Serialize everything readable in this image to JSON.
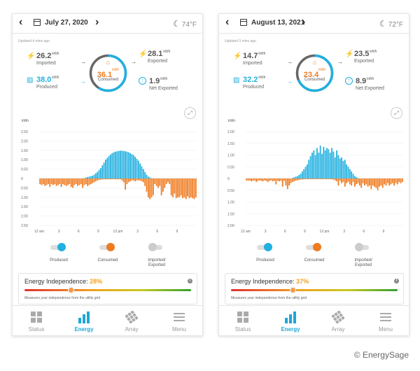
{
  "colors": {
    "produced": "#21b0e0",
    "consumed": "#ef7b20",
    "exported_toggle": "#cccccc",
    "active_tab": "#1ea7d6"
  },
  "panels": [
    {
      "date": "July 27, 2020",
      "temp": "74°F",
      "updated": "Updated 4 mins ago",
      "imported": {
        "value": "26.2",
        "unit": "kWh",
        "label": "Imported"
      },
      "produced": {
        "value": "38.0",
        "unit": "kWh",
        "label": "Produced"
      },
      "consumed": {
        "value": "36.1",
        "unit": "kWh",
        "label": "Consumed"
      },
      "exported": {
        "value": "28.1",
        "unit": "kWh",
        "label": "Exported"
      },
      "net_exported": {
        "value": "1.9",
        "unit": "kWh",
        "label": "Net Exported"
      },
      "independence": {
        "label": "Energy Independence:",
        "value": "28%",
        "percent": 28,
        "desc": "Measures your independence from the utility grid"
      }
    },
    {
      "date": "August 13, 2021",
      "temp": "72°F",
      "updated": "Updated 3 mins ago",
      "imported": {
        "value": "14.7",
        "unit": "kWh",
        "label": "Imported"
      },
      "produced": {
        "value": "32.2",
        "unit": "kWh",
        "label": "Produced"
      },
      "consumed": {
        "value": "23.4",
        "unit": "kWh",
        "label": "Consumed"
      },
      "exported": {
        "value": "23.5",
        "unit": "kWh",
        "label": "Exported"
      },
      "net_exported": {
        "value": "8.9",
        "unit": "kWh",
        "label": "Net Exported"
      },
      "independence": {
        "label": "Energy Independence:",
        "value": "37%",
        "percent": 37,
        "desc": "Measures your independence from the utility grid"
      }
    }
  ],
  "chart_data": [
    {
      "type": "bar",
      "title": "",
      "ylabel": "kWh",
      "yticks": [
        "2.50",
        "2.00",
        "1.50",
        "1.00",
        "0.50",
        "0",
        "0.50",
        "1.00",
        "1.50",
        "2.00",
        "2.50"
      ],
      "ylim": [
        -2.5,
        2.5
      ],
      "xticks": [
        "12 am",
        "3",
        "6",
        "9",
        "12 pm",
        "3",
        "6",
        "9"
      ],
      "x_range": [
        0,
        24
      ],
      "bins_per_hour": 4,
      "series": [
        {
          "name": "Produced",
          "values": [
            0,
            0,
            0,
            0,
            0,
            0,
            0,
            0,
            0,
            0,
            0,
            0,
            0,
            0,
            0,
            0,
            0,
            0,
            0,
            0,
            0,
            0,
            0,
            0,
            0,
            0,
            0,
            0.02,
            0.05,
            0.08,
            0.1,
            0.12,
            0.15,
            0.2,
            0.28,
            0.35,
            0.45,
            0.55,
            0.7,
            0.85,
            1.0,
            1.1,
            1.2,
            1.28,
            1.35,
            1.4,
            1.43,
            1.45,
            1.47,
            1.48,
            1.48,
            1.47,
            1.45,
            1.43,
            1.4,
            1.35,
            1.3,
            1.25,
            1.15,
            1.05,
            0.95,
            0.8,
            0.65,
            0.5,
            0.35,
            0.2,
            0.1,
            0.05,
            0.02,
            0,
            0,
            0,
            0,
            0,
            0,
            0,
            0,
            0,
            0,
            0,
            0,
            0,
            0,
            0,
            0,
            0,
            0,
            0,
            0,
            0,
            0,
            0,
            0,
            0,
            0,
            0
          ]
        },
        {
          "name": "Consumed",
          "values": [
            -0.3,
            -0.35,
            -0.3,
            -0.4,
            -0.35,
            -0.3,
            -0.45,
            -0.3,
            -0.35,
            -0.3,
            -0.4,
            -0.35,
            -0.3,
            -0.45,
            -0.3,
            -0.35,
            -0.4,
            -0.35,
            -0.3,
            -0.45,
            -0.5,
            -0.35,
            -0.3,
            -0.4,
            -0.35,
            -0.3,
            -0.5,
            -0.35,
            -0.3,
            -0.4,
            -0.35,
            -0.3,
            -0.25,
            -0.2,
            -0.15,
            -0.1,
            -0.08,
            -0.06,
            -0.05,
            -0.05,
            -0.04,
            -0.04,
            -0.04,
            -0.04,
            -0.04,
            -0.04,
            -0.04,
            -0.05,
            -0.04,
            -0.04,
            -0.1,
            -0.2,
            -0.6,
            -0.3,
            -0.2,
            -0.15,
            -0.1,
            -0.1,
            -0.15,
            -0.1,
            -0.1,
            -0.1,
            -0.15,
            -0.2,
            -0.4,
            -0.7,
            -1.0,
            -1.1,
            -1.0,
            -0.9,
            -0.3,
            -0.4,
            -0.5,
            -0.4,
            -0.9,
            -0.7,
            -0.5,
            -0.3,
            -0.2,
            -0.3,
            -0.9,
            -1.0,
            -0.8,
            -1.05,
            -1.0,
            -1.0,
            -0.9,
            -1.05,
            -1.0,
            -1.1,
            -0.95,
            -1.05,
            -1.0,
            -1.05,
            -1.1,
            -1.0
          ]
        }
      ]
    },
    {
      "type": "bar",
      "title": "",
      "ylabel": "kWh",
      "yticks": [
        "2.00",
        "1.50",
        "1.00",
        "0.50",
        "0",
        "0.50",
        "1.00",
        "1.50",
        "2.00"
      ],
      "ylim": [
        -2.0,
        2.0
      ],
      "xticks": [
        "12 am",
        "3",
        "6",
        "9",
        "12 pm",
        "3",
        "6",
        "9"
      ],
      "x_range": [
        0,
        24
      ],
      "bins_per_hour": 4,
      "series": [
        {
          "name": "Produced",
          "values": [
            0,
            0,
            0,
            0,
            0,
            0,
            0,
            0,
            0,
            0,
            0,
            0,
            0,
            0,
            0,
            0,
            0,
            0,
            0,
            0,
            0,
            0,
            0,
            0,
            0,
            0,
            0,
            0,
            0.02,
            0.05,
            0.08,
            0.1,
            0.15,
            0.2,
            0.3,
            0.4,
            0.5,
            0.6,
            0.8,
            0.95,
            1.1,
            1.2,
            1.0,
            1.3,
            1.1,
            1.4,
            1.05,
            1.35,
            1.2,
            1.3,
            1.25,
            1.1,
            1.3,
            1.15,
            0.9,
            1.2,
            1.0,
            0.85,
            0.9,
            0.75,
            0.8,
            0.6,
            0.5,
            0.4,
            0.3,
            0.2,
            0.1,
            0.05,
            0.02,
            0,
            0,
            0,
            0,
            0,
            0,
            0,
            0,
            0,
            0,
            0,
            0,
            0,
            0,
            0,
            0,
            0,
            0,
            0,
            0,
            0,
            0,
            0,
            0,
            0,
            0,
            0
          ]
        },
        {
          "name": "Consumed",
          "values": [
            -0.08,
            -0.1,
            -0.08,
            -0.12,
            -0.1,
            -0.08,
            -0.15,
            -0.1,
            -0.08,
            -0.1,
            -0.12,
            -0.08,
            -0.1,
            -0.15,
            -0.1,
            -0.08,
            -0.12,
            -0.1,
            -0.25,
            -0.1,
            -0.12,
            -0.1,
            -0.35,
            -0.1,
            -0.3,
            -0.45,
            -0.3,
            -0.2,
            -0.15,
            -0.12,
            -0.1,
            -0.08,
            -0.06,
            -0.05,
            -0.04,
            -0.04,
            -0.03,
            -0.03,
            -0.03,
            -0.03,
            -0.03,
            -0.03,
            -0.03,
            -0.03,
            -0.03,
            -0.03,
            -0.03,
            -0.03,
            -0.03,
            -0.03,
            -0.03,
            -0.03,
            -0.03,
            -0.05,
            -0.08,
            -0.12,
            -0.3,
            -0.1,
            -0.2,
            -0.15,
            -0.35,
            -0.2,
            -0.15,
            -0.25,
            -0.3,
            -0.15,
            -0.35,
            -0.25,
            -0.2,
            -0.3,
            -0.4,
            -0.2,
            -0.3,
            -0.25,
            -0.35,
            -0.3,
            -0.45,
            -0.3,
            -0.35,
            -0.4,
            -0.5,
            -0.35,
            -0.3,
            -0.4,
            -0.25,
            -0.3,
            -0.2,
            -0.3,
            -0.25,
            -0.2,
            -0.3,
            -0.2,
            -0.25,
            -0.15,
            -0.2,
            -0.15
          ]
        }
      ]
    }
  ],
  "legend": [
    {
      "label": "Produced",
      "color": "#21b0e0"
    },
    {
      "label": "Consumed",
      "color": "#ef7b20"
    },
    {
      "label": "Imported/\nExported",
      "color": "#cccccc"
    }
  ],
  "tabs": [
    {
      "label": "Status",
      "active": false
    },
    {
      "label": "Energy",
      "active": true
    },
    {
      "label": "Array",
      "active": false
    },
    {
      "label": "Menu",
      "active": false
    }
  ],
  "credit": "© EnergySage"
}
